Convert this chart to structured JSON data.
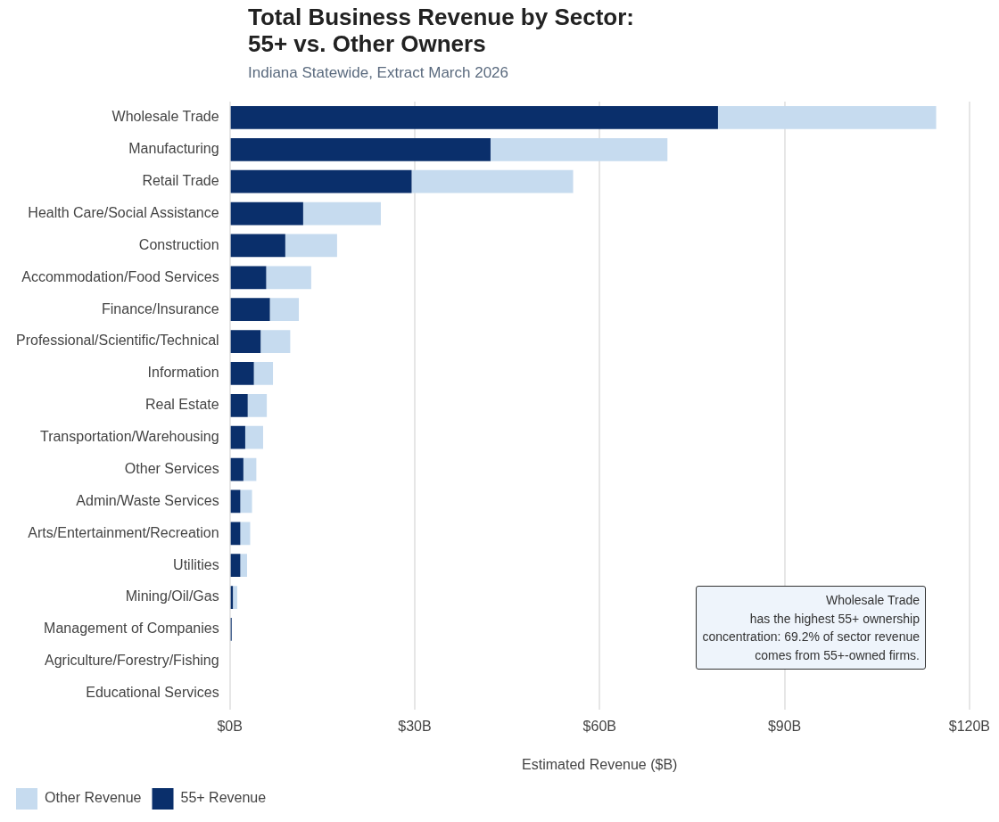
{
  "chart_data": {
    "type": "bar",
    "orientation": "horizontal",
    "stacked": true,
    "title": "Total Business Revenue by Sector:\n55+ vs. Other Owners",
    "subtitle": "Indiana Statewide, Extract March 2026",
    "xlabel": "Estimated Revenue ($B)",
    "categories": [
      "Wholesale Trade",
      "Manufacturing",
      "Retail Trade",
      "Health Care/Social Assistance",
      "Construction",
      "Accommodation/Food Services",
      "Finance/Insurance",
      "Professional/Scientific/Technical",
      "Information",
      "Real Estate",
      "Transportation/Warehousing",
      "Other Services",
      "Admin/Waste Services",
      "Arts/Entertainment/Recreation",
      "Utilities",
      "Mining/Oil/Gas",
      "Management of Companies",
      "Agriculture/Forestry/Fishing",
      "Educational Services"
    ],
    "series": [
      {
        "name": "55+ Revenue",
        "color": "#0a2f6b",
        "values": [
          79.2,
          42.3,
          29.5,
          11.9,
          9.0,
          5.9,
          6.5,
          5.0,
          3.9,
          2.9,
          2.5,
          2.2,
          1.7,
          1.7,
          1.7,
          0.5,
          0.3,
          null,
          null
        ]
      },
      {
        "name": "Other Revenue",
        "color": "#c6dbef",
        "values": [
          35.4,
          28.7,
          26.2,
          12.6,
          8.4,
          7.3,
          4.7,
          4.8,
          3.1,
          3.1,
          2.9,
          2.1,
          1.9,
          1.6,
          1.1,
          0.7,
          null,
          0.0,
          0.0
        ]
      }
    ],
    "xlim": [
      0,
      120
    ],
    "xticks": [
      {
        "value": 0,
        "label": "$0B"
      },
      {
        "value": 30,
        "label": "$30B"
      },
      {
        "value": 60,
        "label": "$60B"
      },
      {
        "value": 90,
        "label": "$90B"
      },
      {
        "value": 120,
        "label": "$120B"
      }
    ],
    "grid": "x",
    "legend": "bottom left",
    "annotations": [
      "Wholesale Trade\nhas the highest 55+ ownership\nconcentration: 69.2% of sector revenue\ncomes from 55+-owned firms."
    ]
  }
}
